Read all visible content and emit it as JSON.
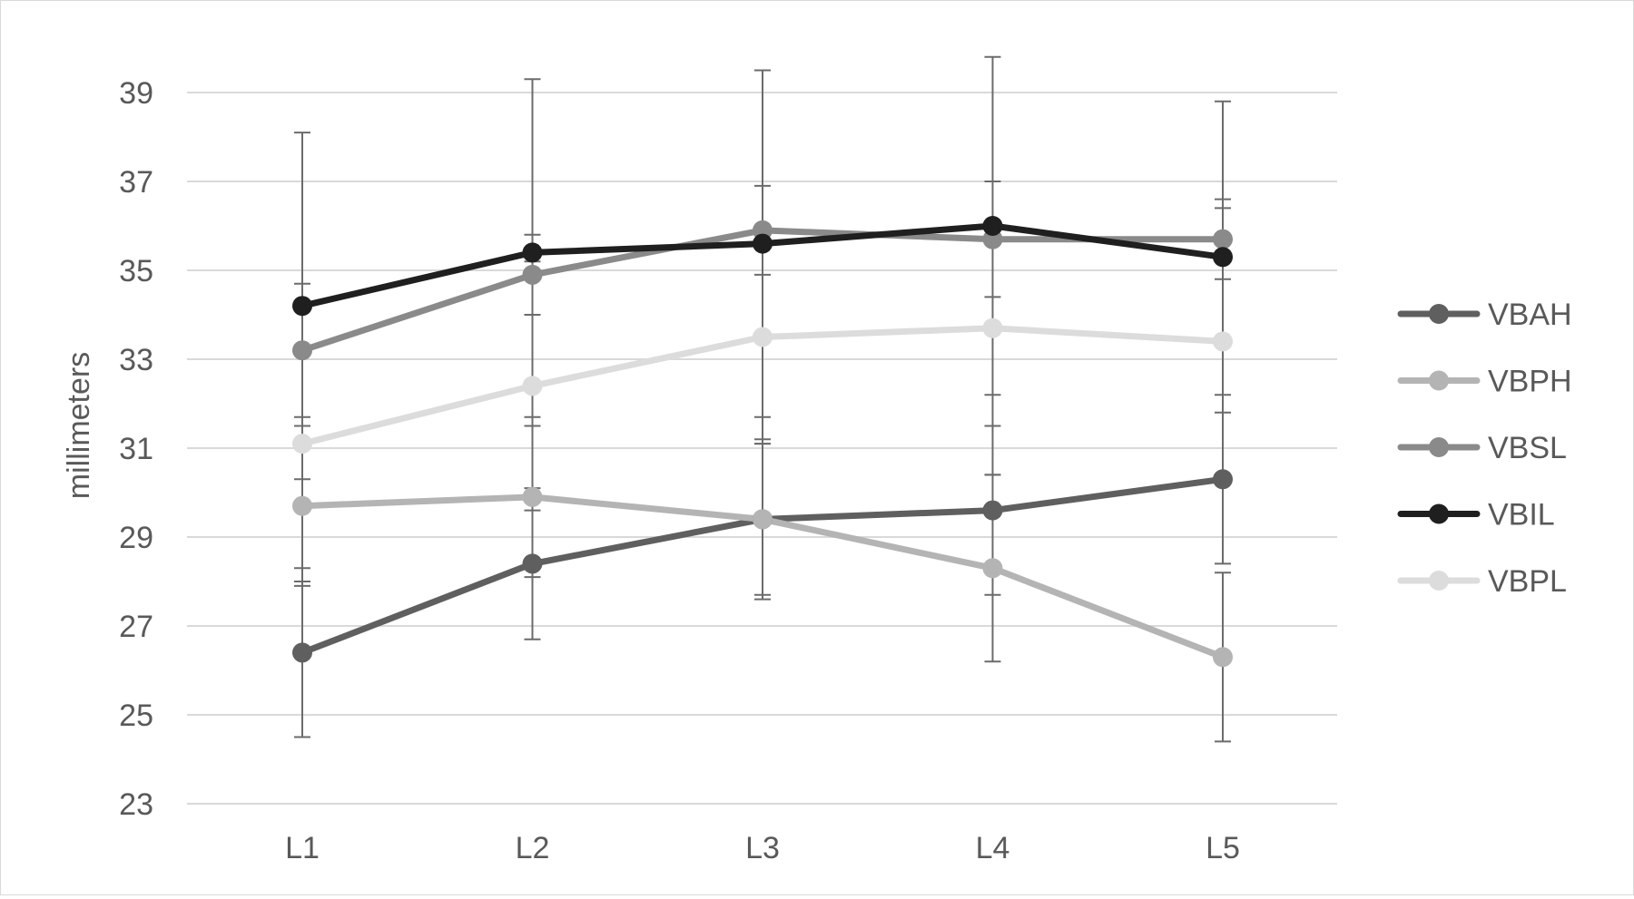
{
  "chart_data": {
    "type": "line",
    "title": "",
    "xlabel": "",
    "ylabel": "millimeters",
    "categories": [
      "L1",
      "L2",
      "L3",
      "L4",
      "L5"
    ],
    "ylim": [
      23,
      40
    ],
    "yticks": [
      23,
      25,
      27,
      29,
      31,
      33,
      35,
      37,
      39
    ],
    "grid": "horizontal",
    "legend_position": "right",
    "series": [
      {
        "name": "VBAH",
        "color": "#5f5f5f",
        "values": [
          26.4,
          28.4,
          29.4,
          29.6,
          30.3
        ],
        "error": [
          1.9,
          1.7,
          1.8,
          1.9,
          1.9
        ]
      },
      {
        "name": "VBPH",
        "color": "#b4b4b4",
        "values": [
          29.7,
          29.9,
          29.4,
          28.3,
          26.3
        ],
        "error": [
          1.8,
          1.8,
          1.7,
          2.1,
          1.9
        ]
      },
      {
        "name": "VBSL",
        "color": "#8a8a8a",
        "values": [
          33.2,
          34.9,
          35.9,
          35.7,
          35.7
        ],
        "error": [
          1.5,
          0.9,
          1.0,
          1.3,
          0.9
        ]
      },
      {
        "name": "VBIL",
        "color": "#1f1f1f",
        "values": [
          34.2,
          35.4,
          35.6,
          36.0,
          35.3
        ],
        "error": [
          3.9,
          3.9,
          3.9,
          3.8,
          3.5
        ]
      },
      {
        "name": "VBPL",
        "color": "#dcdcdc",
        "values": [
          31.1,
          32.4,
          33.5,
          33.7,
          33.4
        ],
        "error": [
          3.1,
          2.8,
          2.4,
          3.3,
          3.0
        ]
      }
    ]
  }
}
